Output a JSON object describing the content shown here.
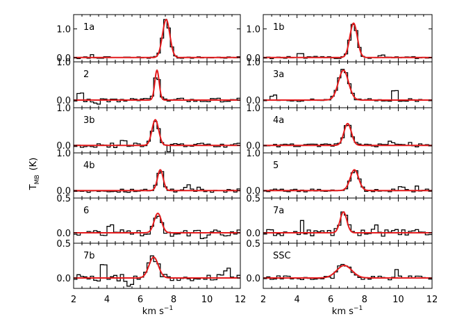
{
  "chart_data": {
    "type": "line",
    "ylabel": "T",
    "ylabel_sub": "MB",
    "ylabel_unit": "(K)",
    "xlabel": "km s",
    "xlabel_sup": "−1",
    "xlim": [
      2,
      12
    ],
    "xticks": [
      2,
      4,
      6,
      8,
      10,
      12
    ],
    "grid": false,
    "series_styles": {
      "observed": {
        "color": "#000000",
        "style": "histogram"
      },
      "fit": {
        "color": "#e41a1c",
        "style": "gaussian"
      }
    },
    "columns": [
      [
        {
          "label": "1a",
          "ylim": [
            -0.15,
            1.5
          ],
          "yticks": [
            0.0,
            1.0
          ],
          "ytick_labels": [
            "0.0",
            "1.0"
          ],
          "fit": {
            "amp": 1.33,
            "center": 7.55,
            "sigma": 0.22
          },
          "noise": 0.03,
          "spikes": [
            [
              3.1,
              0.08
            ],
            [
              2.3,
              -0.06
            ]
          ]
        },
        {
          "label": "2",
          "ylim": [
            -0.2,
            1.0
          ],
          "yticks": [
            0.0,
            1.0
          ],
          "ytick_labels": [
            "0.0",
            "1.0"
          ],
          "fit": {
            "amp": 0.78,
            "center": 7.0,
            "sigma": 0.13
          },
          "noise": 0.05,
          "spikes": [
            [
              2.4,
              0.15
            ],
            [
              3.4,
              -0.1
            ]
          ]
        },
        {
          "label": "3b",
          "ylim": [
            -0.2,
            1.0
          ],
          "yticks": [
            0.0,
            1.0
          ],
          "ytick_labels": [
            "0.0",
            "1.0"
          ],
          "fit": {
            "amp": 0.68,
            "center": 6.9,
            "sigma": 0.2
          },
          "noise": 0.06,
          "spikes": [
            [
              7.7,
              -0.15
            ],
            [
              5.0,
              0.1
            ]
          ]
        },
        {
          "label": "4b",
          "ylim": [
            -0.2,
            1.0
          ],
          "yticks": [
            0.0,
            1.0
          ],
          "ytick_labels": [
            "0.0",
            "1.0"
          ],
          "fit": {
            "amp": 0.55,
            "center": 7.2,
            "sigma": 0.17
          },
          "noise": 0.05,
          "spikes": [
            [
              8.8,
              0.13
            ],
            [
              9.5,
              0.1
            ]
          ]
        },
        {
          "label": "6",
          "ylim": [
            -0.15,
            0.5
          ],
          "yticks": [
            0.0,
            0.5
          ],
          "ytick_labels": [
            "0.0",
            "0.5"
          ],
          "fit": {
            "amp": 0.28,
            "center": 7.05,
            "sigma": 0.22
          },
          "noise": 0.05,
          "spikes": [
            [
              4.2,
              0.12
            ],
            [
              9.8,
              -0.1
            ]
          ]
        },
        {
          "label": "7b",
          "ylim": [
            -0.15,
            0.5
          ],
          "yticks": [
            0.0,
            0.5
          ],
          "ytick_labels": [
            "0.0",
            "0.5"
          ],
          "fit": {
            "amp": 0.3,
            "center": 6.8,
            "sigma": 0.28
          },
          "noise": 0.05,
          "spikes": [
            [
              3.8,
              0.15
            ],
            [
              11.2,
              0.15
            ],
            [
              5.4,
              -0.12
            ]
          ]
        }
      ],
      [
        {
          "label": "1b",
          "ylim": [
            -0.15,
            1.5
          ],
          "yticks": [
            0.0,
            1.0
          ],
          "ytick_labels": [
            "0.0",
            "1.0"
          ],
          "fit": {
            "amp": 1.2,
            "center": 7.35,
            "sigma": 0.22
          },
          "noise": 0.04,
          "spikes": [
            [
              4.2,
              0.1
            ],
            [
              9.0,
              0.08
            ]
          ]
        },
        {
          "label": "3a",
          "ylim": [
            -0.2,
            1.0
          ],
          "yticks": [
            0.0,
            1.0
          ],
          "ytick_labels": [
            "0.0",
            "1.0"
          ],
          "fit": {
            "amp": 0.78,
            "center": 6.75,
            "sigma": 0.3
          },
          "noise": 0.04,
          "spikes": [
            [
              9.8,
              0.26
            ],
            [
              2.6,
              0.12
            ]
          ]
        },
        {
          "label": "4a",
          "ylim": [
            -0.2,
            1.0
          ],
          "yticks": [
            0.0,
            1.0
          ],
          "ytick_labels": [
            "0.0",
            "1.0"
          ],
          "fit": {
            "amp": 0.58,
            "center": 7.0,
            "sigma": 0.22
          },
          "noise": 0.04,
          "spikes": [
            [
              9.6,
              0.1
            ],
            [
              10.7,
              0.1
            ]
          ]
        },
        {
          "label": "5",
          "ylim": [
            -0.2,
            1.0
          ],
          "yticks": [
            0.0,
            1.0
          ],
          "ytick_labels": [
            "0.0",
            "1.0"
          ],
          "fit": {
            "amp": 0.55,
            "center": 7.4,
            "sigma": 0.25
          },
          "noise": 0.04,
          "spikes": [
            [
              10.2,
              0.1
            ],
            [
              11.1,
              0.08
            ]
          ]
        },
        {
          "label": "7a",
          "ylim": [
            -0.15,
            0.5
          ],
          "yticks": [
            0.0,
            0.5
          ],
          "ytick_labels": [
            "0.0",
            "0.5"
          ],
          "fit": {
            "amp": 0.3,
            "center": 6.75,
            "sigma": 0.2
          },
          "noise": 0.05,
          "spikes": [
            [
              4.3,
              0.14
            ],
            [
              8.6,
              0.1
            ]
          ]
        },
        {
          "label": "SSC",
          "ylim": [
            -0.15,
            0.5
          ],
          "yticks": [
            0.0,
            0.5
          ],
          "ytick_labels": [
            "0.0",
            "0.5"
          ],
          "fit": {
            "amp": 0.18,
            "center": 6.8,
            "sigma": 0.45
          },
          "noise": 0.03,
          "spikes": [
            [
              9.9,
              0.12
            ],
            [
              6.1,
              -0.06
            ]
          ]
        }
      ]
    ]
  }
}
